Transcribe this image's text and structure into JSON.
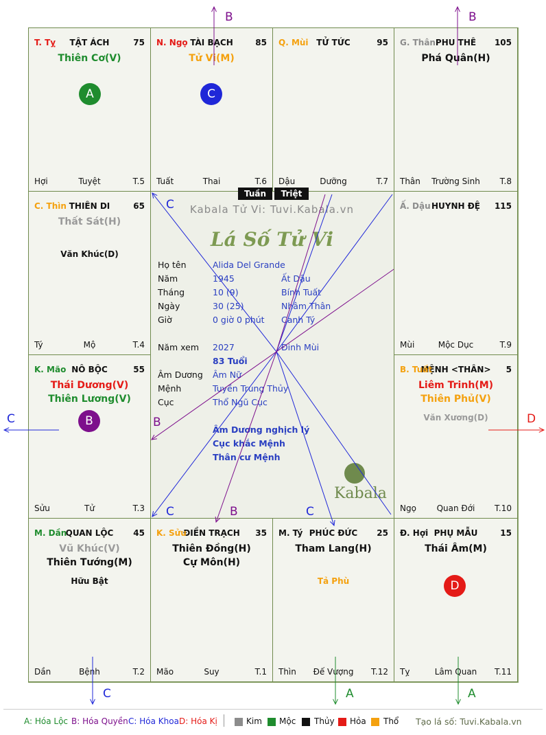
{
  "colors": {
    "kim": "#8c8c8c",
    "moc": "#1f8c2e",
    "thuy": "#111111",
    "hoa": "#e41b17",
    "tho": "#f4a10f",
    "loc": "#1f8c2e",
    "quyen": "#7d0f8c",
    "khoa": "#1f27d8",
    "ki": "#e41b17"
  },
  "cells": [
    {
      "id": "ty",
      "name": "T. Tỵ",
      "color": "#e41b17",
      "house": "TẬT ÁCH",
      "num": "75",
      "foot": [
        "Hợi",
        "Tuyệt",
        "T.5"
      ],
      "stars": [
        {
          "text": "Thiên Cơ(V)",
          "color": "#1f8c2e",
          "big": true
        }
      ],
      "badge": {
        "text": "A",
        "color": "#1f8c2e"
      }
    },
    {
      "id": "ngo",
      "name": "N. Ngọ",
      "color": "#e41b17",
      "house": "TÀI BẠCH",
      "num": "85",
      "foot": [
        "Tuất",
        "Thai",
        "T.6"
      ],
      "stars": [
        {
          "text": "Tử Vi(M)",
          "color": "#f4a10f",
          "big": true
        }
      ],
      "badge": {
        "text": "C",
        "color": "#1f27d8"
      }
    },
    {
      "id": "mui",
      "name": "Q. Mùi",
      "color": "#f4a10f",
      "house": "TỬ TỨC",
      "num": "95",
      "foot": [
        "Dậu",
        "Dưỡng",
        "T.7"
      ],
      "stars": []
    },
    {
      "id": "than",
      "name": "G. Thân",
      "color": "#8c8c8c",
      "house": "PHU THÊ",
      "num": "105",
      "foot": [
        "Thân",
        "Trường Sinh",
        "T.8"
      ],
      "stars": [
        {
          "text": "Phá Quân(H)",
          "color": "#111111",
          "big": true
        }
      ]
    },
    {
      "id": "thin",
      "name": "C. Thìn",
      "color": "#f4a10f",
      "house": "THIÊN DI",
      "num": "65",
      "foot": [
        "Tý",
        "Mộ",
        "T.4"
      ],
      "stars": [
        {
          "text": "Thất Sát(H)",
          "color": "#9a9a9a",
          "big": true
        },
        {
          "text": "Văn Khúc(D)",
          "color": "#111111",
          "big": false
        }
      ]
    },
    {
      "id": "dau",
      "name": "Ấ. Dậu",
      "color": "#8c8c8c",
      "house": "HUYNH ĐỆ",
      "num": "115",
      "foot": [
        "Mùi",
        "Mộc Dục",
        "T.9"
      ],
      "stars": []
    },
    {
      "id": "mao",
      "name": "K. Mão",
      "color": "#1f8c2e",
      "house": "NÔ BỘC",
      "num": "55",
      "foot": [
        "Sửu",
        "Tử",
        "T.3"
      ],
      "stars": [
        {
          "text": "Thái Dương(V)",
          "color": "#e41b17",
          "big": true
        },
        {
          "text": "Thiên Lương(V)",
          "color": "#1f8c2e",
          "big": true
        }
      ],
      "badge": {
        "text": "B",
        "color": "#7d0f8c"
      }
    },
    {
      "id": "tuat",
      "name": "B. Tuất",
      "color": "#f4a10f",
      "house": "MỆNH <THÂN>",
      "num": "5",
      "foot": [
        "Ngọ",
        "Quan Đới",
        "T.10"
      ],
      "stars": [
        {
          "text": "Liêm Trinh(M)",
          "color": "#e41b17",
          "big": true
        },
        {
          "text": "Thiên Phủ(V)",
          "color": "#f4a10f",
          "big": true
        },
        {
          "text": "Văn Xương(D)",
          "color": "#9a9a9a",
          "big": false
        }
      ]
    },
    {
      "id": "dan",
      "name": "M. Dần",
      "color": "#1f8c2e",
      "house": "QUAN LỘC",
      "num": "45",
      "foot": [
        "Dần",
        "Bệnh",
        "T.2"
      ],
      "stars": [
        {
          "text": "Vũ Khúc(V)",
          "color": "#9a9a9a",
          "big": true
        },
        {
          "text": "Thiên Tướng(M)",
          "color": "#111111",
          "big": true
        },
        {
          "text": "Hữu Bật",
          "color": "#111111",
          "big": false
        }
      ]
    },
    {
      "id": "suu",
      "name": "K. Sửu",
      "color": "#f4a10f",
      "house": "ĐIỀN TRẠCH",
      "num": "35",
      "foot": [
        "Mão",
        "Suy",
        "T.1"
      ],
      "stars": [
        {
          "text": "Thiên Đồng(H)",
          "color": "#111111",
          "big": true
        },
        {
          "text": "Cự Môn(H)",
          "color": "#111111",
          "big": true
        }
      ]
    },
    {
      "id": "tyi",
      "name": "M. Tý",
      "color": "#111111",
      "house": "PHÚC ĐỨC",
      "num": "25",
      "foot": [
        "Thìn",
        "Đế Vượng",
        "T.12"
      ],
      "stars": [
        {
          "text": "Tham Lang(H)",
          "color": "#111111",
          "big": true
        },
        {
          "text": "Tả Phù",
          "color": "#f4a10f",
          "big": false
        }
      ]
    },
    {
      "id": "hoi",
      "name": "Đ. Hợi",
      "color": "#111111",
      "house": "PHỤ MẪU",
      "num": "15",
      "foot": [
        "Tỵ",
        "Lâm Quan",
        "T.11"
      ],
      "stars": [
        {
          "text": "Thái Âm(M)",
          "color": "#111111",
          "big": true
        }
      ],
      "badge": {
        "text": "D",
        "color": "#e41b17"
      }
    }
  ],
  "tags": {
    "tuan": "Tuần",
    "triet": "Triệt"
  },
  "center": {
    "watermark": "Kabala Tử Vi: Tuvi.Kabala.vn",
    "title": "Lá Số Tử Vi",
    "rows": [
      {
        "label": "Họ tên",
        "v1": "Alida Del Grande",
        "v2": ""
      },
      {
        "label": "Năm",
        "v1": "1945",
        "v2": "Ất Dậu"
      },
      {
        "label": "Tháng",
        "v1": "10 (9)",
        "v2": "Bính Tuất"
      },
      {
        "label": "Ngày",
        "v1": "30  (25)",
        "v2": "Nhâm Thân"
      },
      {
        "label": "Giờ",
        "v1": "0 giờ 0 phút",
        "v2": "Canh Tý"
      },
      {
        "label": "Năm xem",
        "v1": "2027",
        "v2": "Đinh Mùi"
      },
      {
        "label": "",
        "v1": "83 Tuổi",
        "v2": ""
      },
      {
        "label": "Âm Dương",
        "v1": "Âm Nữ",
        "v2": ""
      },
      {
        "label": "Mệnh",
        "v1": "Tuyền Trung Thủy",
        "v2": ""
      },
      {
        "label": "Cục",
        "v1": "Thổ Ngũ Cục",
        "v2": ""
      }
    ],
    "notes": [
      "Âm Dương nghịch lý",
      "Cục khắc Mệnh",
      "Thân cư Mệnh"
    ],
    "logo": "Kabala"
  },
  "arrow_labels": {
    "b": "B",
    "c": "C",
    "d": "D",
    "a": "A"
  },
  "legend": {
    "loc": "A: Hóa Lộc",
    "quyen": "B: Hóa Quyền",
    "khoa": "C: Hóa Khoa",
    "ki": "D: Hóa Kị",
    "kim": "Kim",
    "moc": "Mộc",
    "thuy": "Thủy",
    "hoa": "Hỏa",
    "tho": "Thổ",
    "site": "Tạo lá số: Tuvi.Kabala.vn"
  }
}
